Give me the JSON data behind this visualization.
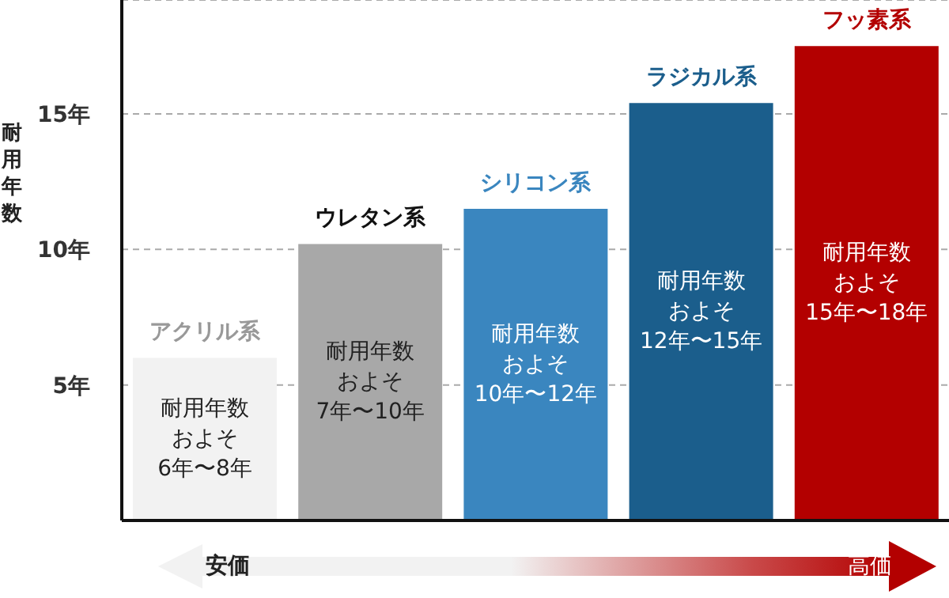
{
  "chart_data": {
    "type": "bar",
    "ylabel": "耐用年数",
    "categories": [
      "アクリル系",
      "ウレタン系",
      "シリコン系",
      "ラジカル系",
      "フッ素系"
    ],
    "values": [
      6,
      10.2,
      11.5,
      15.4,
      17.5
    ],
    "colors": [
      "#f2f2f2",
      "#a8a8a8",
      "#3a86bf",
      "#1b5e8c",
      "#b30000"
    ],
    "value_labels": [
      "耐用年数およそ6年〜8年",
      "耐用年数およそ7年〜10年",
      "耐用年数およそ10年〜12年",
      "耐用年数およそ12年〜15年",
      "耐用年数およそ15年〜18年"
    ],
    "ylim": [
      0,
      19.2
    ],
    "yticks": [
      {
        "value": 5,
        "label": "5年"
      },
      {
        "value": 10,
        "label": "10年"
      },
      {
        "value": 15,
        "label": "15年"
      }
    ],
    "grid": "y",
    "tick_labels": "y",
    "annotations": [
      "安価",
      "高価"
    ]
  }
}
